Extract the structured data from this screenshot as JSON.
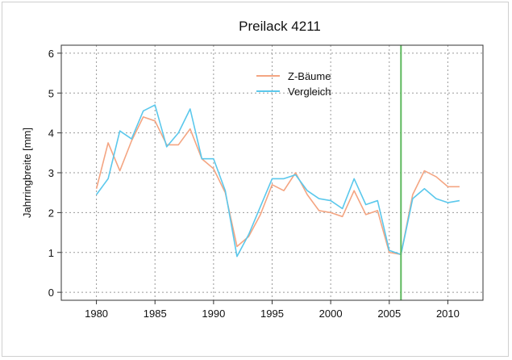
{
  "chart_data": {
    "type": "line",
    "title": "Preilack 4211",
    "xlabel": "",
    "ylabel": "Jahrringbreite [mm]",
    "xlim": [
      1977,
      2013
    ],
    "ylim": [
      -0.2,
      6.2
    ],
    "xticks": [
      "1980",
      "1985",
      "1990",
      "1995",
      "2000",
      "2005",
      "2010"
    ],
    "yticks": [
      "0",
      "1",
      "2",
      "3",
      "4",
      "5",
      "6"
    ],
    "grid": true,
    "legend_position": "top-center",
    "vline": {
      "x": 2006,
      "color": "#5cb85c"
    },
    "x": [
      1980,
      1981,
      1982,
      1983,
      1984,
      1985,
      1986,
      1987,
      1988,
      1989,
      1990,
      1991,
      1992,
      1993,
      1994,
      1995,
      1996,
      1997,
      1998,
      1999,
      2000,
      2001,
      2002,
      2003,
      2004,
      2005,
      2006,
      2007,
      2008,
      2009,
      2010,
      2011
    ],
    "series": [
      {
        "name": "Z-Bäume",
        "color": "#f4a582",
        "values": [
          2.6,
          3.75,
          3.05,
          3.8,
          4.4,
          4.3,
          3.7,
          3.7,
          4.1,
          3.35,
          3.1,
          2.5,
          1.15,
          1.4,
          1.95,
          2.7,
          2.55,
          3.0,
          2.45,
          2.05,
          2.0,
          1.9,
          2.55,
          1.95,
          2.05,
          1.0,
          0.95,
          2.45,
          3.05,
          2.9,
          2.65,
          2.65
        ]
      },
      {
        "name": "Vergleich",
        "color": "#5bc8ec",
        "values": [
          2.45,
          2.85,
          4.05,
          3.85,
          4.55,
          4.7,
          3.65,
          4.0,
          4.6,
          3.35,
          3.35,
          2.55,
          0.9,
          1.45,
          2.15,
          2.85,
          2.85,
          2.95,
          2.55,
          2.35,
          2.3,
          2.1,
          2.85,
          2.2,
          2.3,
          1.05,
          0.95,
          2.35,
          2.6,
          2.35,
          2.25,
          2.3
        ]
      }
    ]
  }
}
